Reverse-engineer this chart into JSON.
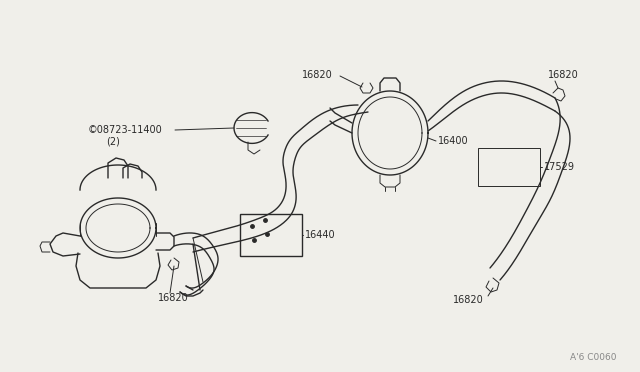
{
  "bg_color": "#f0efea",
  "line_color": "#2a2a2a",
  "text_color": "#2a2a2a",
  "figsize": [
    6.4,
    3.72
  ],
  "dpi": 100,
  "diagram_code": "A'6 C0060"
}
